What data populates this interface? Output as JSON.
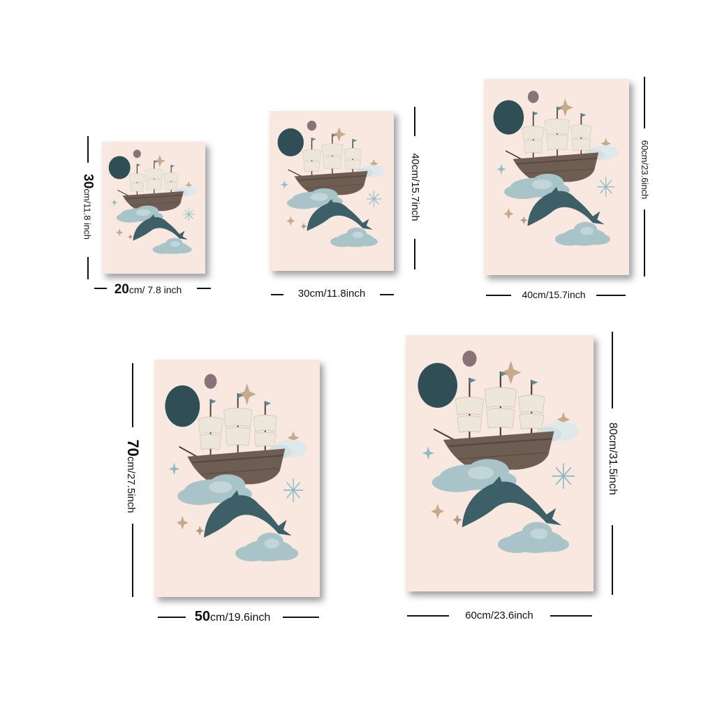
{
  "posters": [
    {
      "width_label": {
        "num": "20",
        "unit": "cm/ 7.8 inch"
      },
      "height_label": {
        "num": "30",
        "unit": "cm/11.8 inch"
      }
    },
    {
      "width_label": {
        "num": "",
        "unit": "30cm/11.8inch"
      },
      "height_label": {
        "num": "",
        "unit": "40cm/15.7inch"
      }
    },
    {
      "width_label": {
        "num": "",
        "unit": "40cm/15.7inch"
      },
      "height_label": {
        "num": "",
        "unit": "60cm/23.6inch"
      }
    },
    {
      "width_label": {
        "num": "50",
        "unit": "cm/19.6inch"
      },
      "height_label": {
        "num": "70",
        "unit": "cm/27.5inch"
      }
    },
    {
      "width_label": {
        "num": "",
        "unit": "60cm/23.6inch"
      },
      "height_label": {
        "num": "",
        "unit": "80cm/31.5inch"
      }
    }
  ],
  "colors": {
    "background": "#f8e8df",
    "planet": "#2f4e55",
    "moon": "#8a7378",
    "hull": "#6e5d52",
    "sail": "#ede6da",
    "cloud": "#a9c4c9",
    "dolphin": "#3c5f68",
    "star": "#c8a98a",
    "sparkle": "#8bbcc4"
  }
}
